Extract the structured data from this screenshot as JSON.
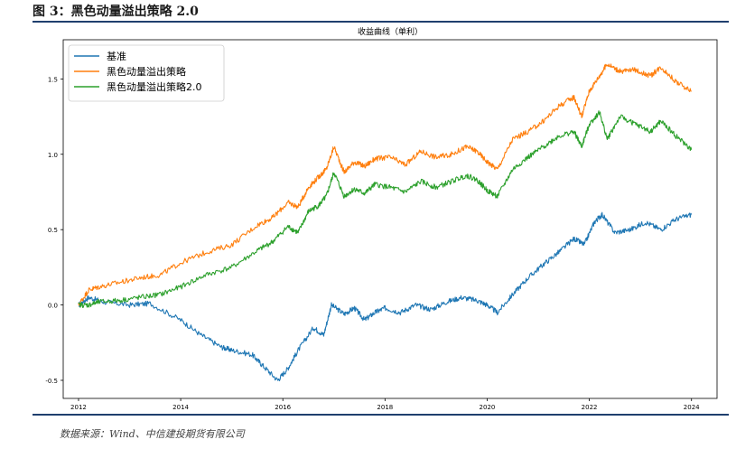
{
  "figure": {
    "title": "图 3：黑色动量溢出策略 2.0",
    "source": "数据来源：Wind、中信建投期货有限公司"
  },
  "chart_data": {
    "type": "line",
    "title": "收益曲线（单利）",
    "xlabel": "",
    "ylabel": "",
    "xlim": [
      2011.7,
      2024.5
    ],
    "ylim": [
      -0.62,
      1.76
    ],
    "xticks": [
      2012,
      2014,
      2016,
      2018,
      2020,
      2022,
      2024
    ],
    "yticks": [
      -0.5,
      0.0,
      0.5,
      1.0,
      1.5
    ],
    "grid": false,
    "legend_position": "upper-left",
    "series": [
      {
        "name": "基准",
        "color": "#1f77b4",
        "x": [
          2012.0,
          2012.2,
          2012.5,
          2013.0,
          2013.4,
          2014.0,
          2014.4,
          2014.8,
          2015.0,
          2015.4,
          2015.6,
          2015.9,
          2016.1,
          2016.3,
          2016.6,
          2016.8,
          2016.95,
          2017.2,
          2017.4,
          2017.6,
          2017.8,
          2018.0,
          2018.3,
          2018.6,
          2018.9,
          2019.2,
          2019.5,
          2019.8,
          2020.0,
          2020.2,
          2020.5,
          2020.8,
          2021.1,
          2021.4,
          2021.7,
          2021.9,
          2022.1,
          2022.25,
          2022.5,
          2022.8,
          2023.1,
          2023.4,
          2023.7,
          2024.0
        ],
        "y": [
          0.0,
          0.05,
          0.02,
          0.0,
          0.01,
          -0.1,
          -0.2,
          -0.28,
          -0.3,
          -0.33,
          -0.4,
          -0.5,
          -0.42,
          -0.3,
          -0.15,
          -0.2,
          0.0,
          -0.06,
          -0.02,
          -0.1,
          -0.05,
          -0.02,
          -0.05,
          0.0,
          -0.03,
          0.02,
          0.05,
          0.03,
          0.0,
          -0.05,
          0.07,
          0.18,
          0.27,
          0.35,
          0.44,
          0.4,
          0.55,
          0.6,
          0.48,
          0.5,
          0.55,
          0.5,
          0.57,
          0.6
        ]
      },
      {
        "name": "黑色动量溢出策略",
        "color": "#ff7f0e",
        "x": [
          2012.0,
          2012.2,
          2012.4,
          2012.8,
          2013.2,
          2013.6,
          2014.0,
          2014.5,
          2015.0,
          2015.5,
          2015.8,
          2016.1,
          2016.3,
          2016.5,
          2016.7,
          2016.85,
          2017.0,
          2017.2,
          2017.4,
          2017.6,
          2017.8,
          2018.1,
          2018.4,
          2018.7,
          2019.0,
          2019.3,
          2019.6,
          2019.8,
          2020.0,
          2020.2,
          2020.5,
          2020.8,
          2021.1,
          2021.4,
          2021.7,
          2021.85,
          2022.0,
          2022.2,
          2022.35,
          2022.6,
          2022.9,
          2023.2,
          2023.4,
          2023.7,
          2024.0
        ],
        "y": [
          0.0,
          0.1,
          0.12,
          0.15,
          0.18,
          0.2,
          0.28,
          0.35,
          0.4,
          0.53,
          0.58,
          0.68,
          0.65,
          0.78,
          0.85,
          0.9,
          1.05,
          0.88,
          0.95,
          0.92,
          0.97,
          0.98,
          0.93,
          1.02,
          0.98,
          1.0,
          1.05,
          1.02,
          0.95,
          0.9,
          1.1,
          1.15,
          1.22,
          1.32,
          1.38,
          1.25,
          1.42,
          1.52,
          1.6,
          1.55,
          1.56,
          1.52,
          1.58,
          1.48,
          1.42
        ]
      },
      {
        "name": "黑色动量溢出策略2.0",
        "color": "#2ca02c",
        "x": [
          2012.0,
          2012.2,
          2012.4,
          2012.8,
          2013.2,
          2013.6,
          2014.0,
          2014.5,
          2015.0,
          2015.5,
          2015.8,
          2016.1,
          2016.3,
          2016.5,
          2016.7,
          2016.85,
          2017.0,
          2017.2,
          2017.4,
          2017.6,
          2017.8,
          2018.1,
          2018.4,
          2018.7,
          2019.0,
          2019.3,
          2019.6,
          2019.8,
          2020.0,
          2020.2,
          2020.5,
          2020.8,
          2021.1,
          2021.4,
          2021.7,
          2021.85,
          2022.0,
          2022.2,
          2022.35,
          2022.6,
          2022.9,
          2023.2,
          2023.4,
          2023.7,
          2024.0
        ],
        "y": [
          0.0,
          0.0,
          0.02,
          0.03,
          0.05,
          0.07,
          0.12,
          0.2,
          0.25,
          0.36,
          0.42,
          0.52,
          0.48,
          0.62,
          0.66,
          0.72,
          0.88,
          0.72,
          0.77,
          0.74,
          0.8,
          0.78,
          0.75,
          0.82,
          0.78,
          0.82,
          0.86,
          0.83,
          0.76,
          0.72,
          0.9,
          0.98,
          1.05,
          1.12,
          1.15,
          1.05,
          1.2,
          1.28,
          1.1,
          1.25,
          1.2,
          1.15,
          1.22,
          1.12,
          1.03
        ]
      }
    ]
  }
}
